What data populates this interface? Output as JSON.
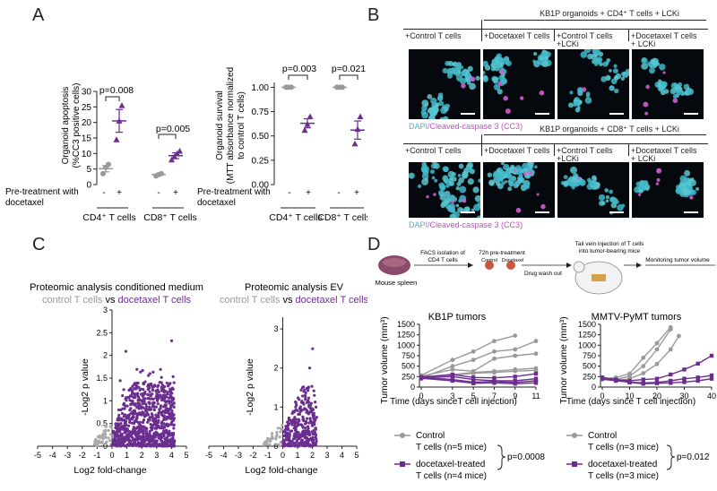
{
  "panels": {
    "a": "A",
    "b": "B",
    "c": "C",
    "d": "D"
  },
  "colors": {
    "grey": "#999999",
    "purple": "#6b2e8f",
    "accent_text": "#6b2e8f",
    "cyan": "#3fb7c9",
    "magenta": "#d05fd0"
  },
  "panel_a": {
    "apoptosis": {
      "ylabel_lines": [
        "Organoid apoptosis",
        "(%CC3 positive cells)"
      ],
      "yticks": [
        "0",
        "5",
        "10",
        "15",
        "20",
        "25",
        "30"
      ],
      "pvals": [
        "p=0.008",
        "p=0.005"
      ],
      "pretreat_label": "Pre-treatment with",
      "pretreat_label2": "docetaxel",
      "signs": [
        "-",
        "+",
        "-",
        "+"
      ],
      "cd4_label": "CD4⁺ T cells",
      "cd8_label": "CD8⁺ T cells"
    },
    "survival": {
      "ylabel_lines": [
        "Organoid survival",
        "(MTT absorbance normalized",
        "to control T cells)"
      ],
      "yticks": [
        "0.00",
        "0.25",
        "0.50",
        "0.75",
        "1.00"
      ],
      "pvals": [
        "p=0.003",
        "p=0.021"
      ],
      "pretreat_label": "Pre-treatment with",
      "pretreat_label2": "docetaxel",
      "signs": [
        "-",
        "+",
        "-",
        "+"
      ],
      "cd4_label": "CD4⁺ T cells",
      "cd8_label": "CD8⁺ T cells"
    }
  },
  "panel_b": {
    "top_title": "KB1P organoids + CD4⁺ T cells + LCKi",
    "bottom_title": "KB1P organoids + CD8⁺ T cells + LCKi",
    "col_labels": [
      "+Control T cells",
      "+Docetaxel T cells",
      "+Control T cells",
      "+Docetaxel T cells"
    ],
    "col_sub": [
      "",
      "",
      "+LCKi",
      "+ LCKi"
    ],
    "stain_dapi": "DAPI",
    "stain_rest": "/Cleaved-caspase 3 (CC3)"
  },
  "panel_c": {
    "left": {
      "title": "Proteomic analysis conditioned medium",
      "sub_ctrl": "control T cells",
      "sub_vs": " vs ",
      "sub_doc": "docetaxel T cells",
      "ylabel": "-Log2 p value",
      "xlabel": "Log2 fold-change",
      "yticks": [
        "0",
        "0.5",
        "1",
        "1.5",
        "2",
        "2.5",
        "3"
      ],
      "xticks": [
        "-5",
        "-4",
        "-3",
        "-2",
        "-1",
        "0",
        "1",
        "2",
        "3",
        "4",
        "5"
      ]
    },
    "right": {
      "title": "Proteomic analysis EV",
      "sub_ctrl": "control T cells",
      "sub_vs": " vs ",
      "sub_doc": "docetaxel T cells",
      "ylabel": "-Log2 p value",
      "xlabel": "Log2 fold-change",
      "yticks": [
        "0",
        "1",
        "2",
        "3"
      ],
      "xticks": [
        "-5",
        "-4",
        "-3",
        "-2",
        "-1",
        "0",
        "1",
        "2",
        "3",
        "4",
        "5"
      ]
    }
  },
  "panel_d": {
    "schema": {
      "step1": "FACS isolation of",
      "step1b": "CD4 T cells",
      "step2": "72h pre-treatment",
      "step2a": "Control",
      "step2b": "Docetaxel",
      "step3": "Drug wash out",
      "step4": "Tail vein injection of T cells",
      "step4b": "into tumor-bearing mice",
      "step5": "Monitoring tumor volume",
      "spleen": "Mouse spleen"
    },
    "legend": {
      "control": "Control",
      "control_n_kb1p": "T cells (n=5 mice)",
      "doc": "docetaxel-treated",
      "doc_n_kb1p": "T cells (n=4 mice)",
      "p_kb1p": "p=0.0008",
      "control_n_mmtv": "T cells (n=3 mice)",
      "doc_n_mmtv": "T cells (n=3 mice)",
      "p_mmtv": "p=0.012"
    }
  },
  "chart_data": [
    {
      "id": "a_apoptosis",
      "type": "scatter",
      "title": "",
      "ylabel": "Organoid apoptosis (%CC3 positive cells)",
      "ylim": [
        0,
        30
      ],
      "groups": [
        {
          "name": "CD4 control",
          "color": "grey",
          "values": [
            3.5,
            5.5,
            6.5
          ],
          "mean": 5.1
        },
        {
          "name": "CD4 docetaxel",
          "color": "purple",
          "values": [
            14.5,
            20.5,
            25.5
          ],
          "mean": 20.5
        },
        {
          "name": "CD8 control",
          "color": "grey",
          "values": [
            2.8,
            3.2,
            3.5
          ],
          "mean": 3.2
        },
        {
          "name": "CD8 docetaxel",
          "color": "purple",
          "values": [
            8.0,
            9.0,
            10.0,
            10.8
          ],
          "mean": 9.3
        }
      ]
    },
    {
      "id": "a_survival",
      "type": "scatter",
      "ylabel": "Organoid survival",
      "ylim": [
        0,
        1.05
      ],
      "groups": [
        {
          "name": "CD4 control",
          "color": "grey",
          "values": [
            1.0,
            1.0,
            1.0
          ],
          "mean": 1.0
        },
        {
          "name": "CD4 docetaxel",
          "color": "purple",
          "values": [
            0.56,
            0.62,
            0.7
          ],
          "mean": 0.63
        },
        {
          "name": "CD8 control",
          "color": "grey",
          "values": [
            1.0,
            1.0,
            1.0
          ],
          "mean": 1.0
        },
        {
          "name": "CD8 docetaxel",
          "color": "purple",
          "values": [
            0.42,
            0.57,
            0.7
          ],
          "mean": 0.56
        }
      ]
    },
    {
      "id": "d_kb1p",
      "type": "line",
      "title": "KB1P tumors",
      "xlabel": "Time (days sinceT cell injection)",
      "ylabel": "Tumor volume (mm³)",
      "xlim": [
        0,
        11
      ],
      "ylim": [
        0,
        1500
      ],
      "xticks": [
        0,
        3,
        5,
        7,
        9,
        11
      ],
      "yticks": [
        0,
        250,
        500,
        750,
        1000,
        1250,
        1500
      ],
      "series": [
        {
          "name": "control",
          "color": "grey",
          "x": [
            0,
            3,
            5,
            7,
            9
          ],
          "y": [
            280,
            650,
            850,
            1100,
            1230
          ]
        },
        {
          "name": "control",
          "color": "grey",
          "x": [
            0,
            3,
            5,
            7,
            9,
            11
          ],
          "y": [
            220,
            500,
            650,
            850,
            900,
            1100
          ]
        },
        {
          "name": "control",
          "color": "grey",
          "x": [
            0,
            3,
            5,
            7,
            9,
            11
          ],
          "y": [
            260,
            420,
            380,
            680,
            750,
            800
          ]
        },
        {
          "name": "control",
          "color": "grey",
          "x": [
            0,
            3,
            5,
            7,
            9,
            11
          ],
          "y": [
            230,
            300,
            350,
            380,
            420,
            450
          ]
        },
        {
          "name": "control",
          "color": "grey",
          "x": [
            0,
            3,
            5,
            7,
            9,
            11
          ],
          "y": [
            200,
            280,
            330,
            350,
            380,
            400
          ]
        },
        {
          "name": "docetaxel",
          "color": "purple",
          "x": [
            0,
            3,
            5,
            7,
            9,
            11
          ],
          "y": [
            240,
            300,
            230,
            220,
            250,
            320
          ]
        },
        {
          "name": "docetaxel",
          "color": "purple",
          "x": [
            0,
            3,
            5,
            7,
            9,
            11
          ],
          "y": [
            220,
            250,
            180,
            150,
            150,
            200
          ]
        },
        {
          "name": "docetaxel",
          "color": "purple",
          "x": [
            0,
            3,
            5,
            7,
            9,
            11
          ],
          "y": [
            230,
            180,
            120,
            130,
            110,
            150
          ]
        },
        {
          "name": "docetaxel",
          "color": "purple",
          "x": [
            0,
            3,
            5,
            7,
            9,
            11
          ],
          "y": [
            210,
            150,
            90,
            100,
            80,
            100
          ]
        }
      ]
    },
    {
      "id": "d_mmtv",
      "type": "line",
      "title": "MMTV-PyMT tumors",
      "xlabel": "Time (days since T cell injection)",
      "ylabel": "Tumor volume (mm³)",
      "xlim": [
        0,
        40
      ],
      "ylim": [
        0,
        1500
      ],
      "xticks": [
        0,
        10,
        20,
        30,
        40
      ],
      "yticks": [
        0,
        250,
        500,
        750,
        1000,
        1250,
        1500
      ],
      "series": [
        {
          "name": "control",
          "color": "grey",
          "x": [
            0,
            5,
            10,
            15,
            20,
            25
          ],
          "y": [
            200,
            230,
            320,
            700,
            1050,
            1430
          ]
        },
        {
          "name": "control",
          "color": "grey",
          "x": [
            0,
            5,
            10,
            15,
            20,
            25
          ],
          "y": [
            230,
            180,
            260,
            500,
            900,
            1380
          ]
        },
        {
          "name": "control",
          "color": "grey",
          "x": [
            0,
            5,
            10,
            15,
            20,
            25,
            28
          ],
          "y": [
            180,
            150,
            200,
            330,
            550,
            900,
            1220
          ]
        },
        {
          "name": "docetaxel",
          "color": "purple",
          "x": [
            0,
            5,
            10,
            15,
            20,
            25,
            30,
            35,
            40
          ],
          "y": [
            230,
            180,
            150,
            180,
            200,
            300,
            420,
            560,
            750
          ]
        },
        {
          "name": "docetaxel",
          "color": "purple",
          "x": [
            0,
            5,
            10,
            15,
            20,
            25,
            30,
            35,
            40
          ],
          "y": [
            200,
            150,
            120,
            100,
            110,
            150,
            200,
            230,
            280
          ]
        },
        {
          "name": "docetaxel",
          "color": "purple",
          "x": [
            0,
            5,
            10,
            15,
            20,
            25,
            30,
            35,
            40
          ],
          "y": [
            210,
            170,
            110,
            80,
            90,
            100,
            120,
            150,
            200
          ]
        }
      ]
    }
  ]
}
